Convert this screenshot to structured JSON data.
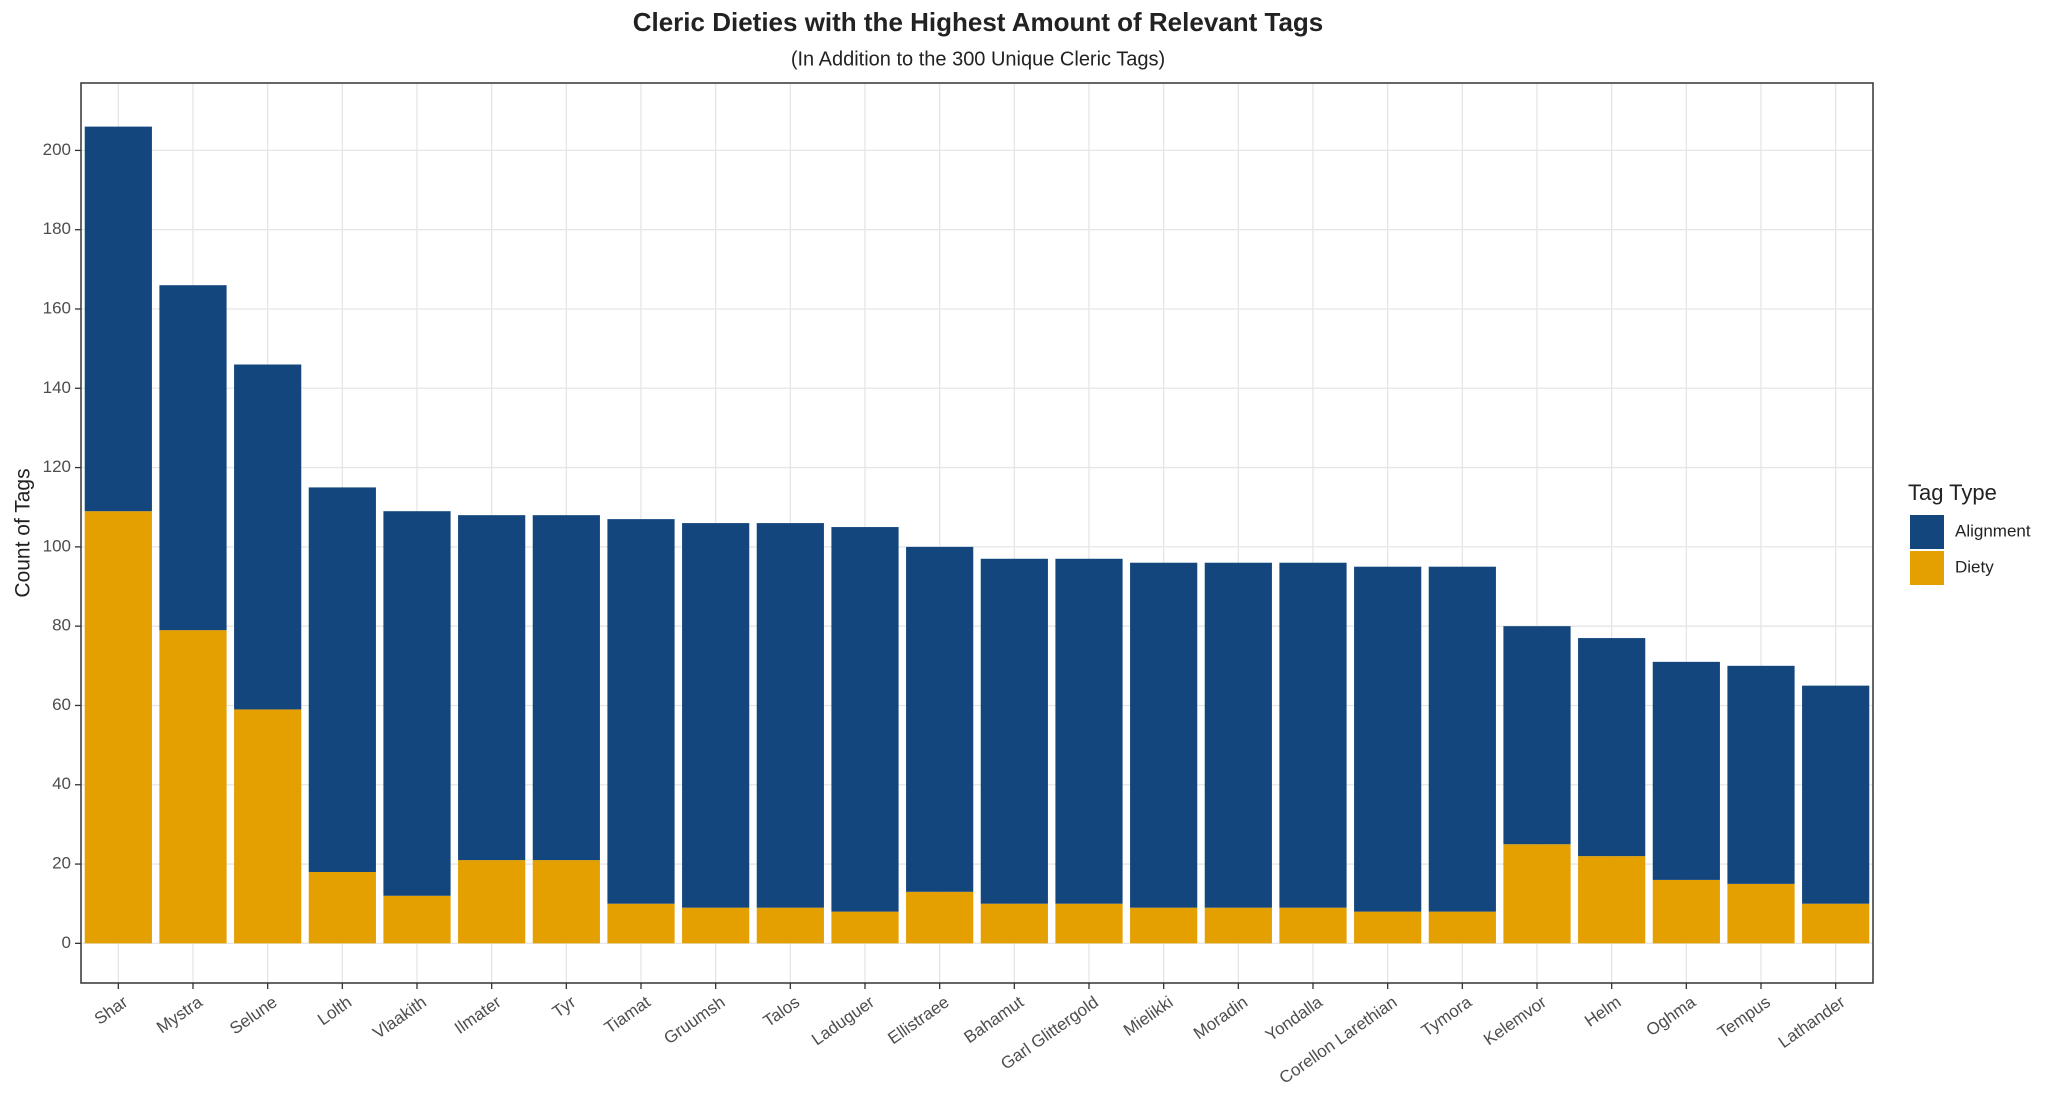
{
  "chart_data": {
    "type": "stacked_bar",
    "title": "Cleric Dieties with the Highest Amount of Relevant Tags",
    "subtitle": "(In Addition to the 300 Unique Cleric Tags)",
    "y_label": "Count of Tags",
    "legend_title": "Tag Type",
    "legend_position": "right",
    "grid": true,
    "categories": [
      "Shar",
      "Mystra",
      "Selune",
      "Lolth",
      "Vlaakith",
      "Ilmater",
      "Tyr",
      "Tiamat",
      "Gruumsh",
      "Talos",
      "Laduguer",
      "Ellistraee",
      "Bahamut",
      "Garl Glittergold",
      "Mielikki",
      "Moradin",
      "Yondalla",
      "Corellon Larethian",
      "Tymora",
      "Kelemvor",
      "Helm",
      "Oghma",
      "Tempus",
      "Lathander"
    ],
    "series": [
      {
        "name": "Alignment",
        "color": "#14467e",
        "values": [
          97,
          87,
          87,
          97,
          97,
          87,
          87,
          97,
          97,
          97,
          97,
          87,
          87,
          87,
          87,
          87,
          87,
          87,
          87,
          55,
          55,
          55,
          55,
          55
        ]
      },
      {
        "name": "Diety",
        "color": "#e3a000",
        "values": [
          109,
          79,
          59,
          18,
          12,
          21,
          21,
          10,
          9,
          9,
          8,
          13,
          10,
          10,
          9,
          9,
          9,
          8,
          8,
          25,
          22,
          16,
          15,
          10
        ]
      }
    ],
    "ylim": [
      -10,
      217
    ],
    "yticks": [
      0,
      20,
      40,
      60,
      80,
      100,
      120,
      140,
      160,
      180,
      200
    ]
  }
}
